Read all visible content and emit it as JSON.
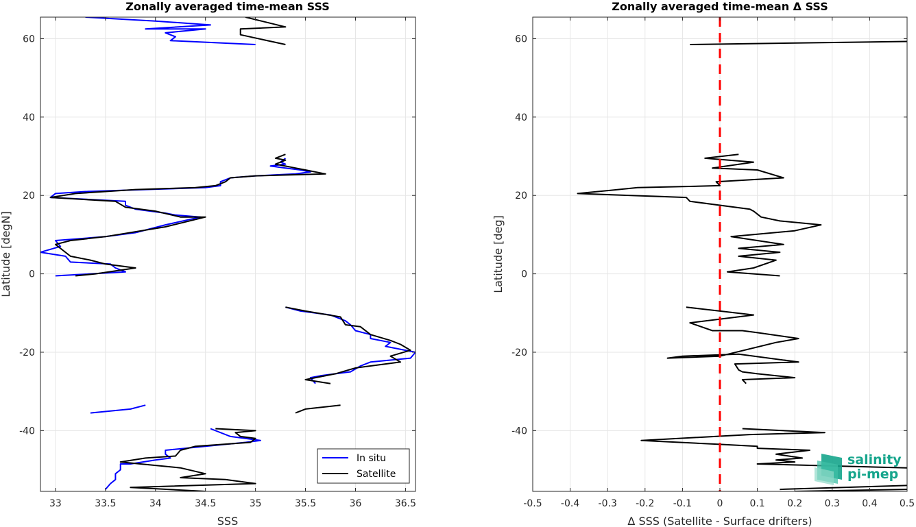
{
  "chart_data": [
    {
      "type": "line",
      "title": "Zonally averaged time-mean SSS",
      "xlabel": "SSS",
      "ylabel": "Latitude [degN]",
      "xlim": [
        32.85,
        36.6
      ],
      "ylim": [
        -55.5,
        65.5
      ],
      "xticks": [
        33,
        33.5,
        34,
        34.5,
        35,
        35.5,
        36,
        36.5
      ],
      "xtick_labels": [
        "33",
        "33.5",
        "34",
        "34.5",
        "35",
        "35.5",
        "36",
        "36.5"
      ],
      "yticks": [
        -40,
        -20,
        0,
        20,
        40,
        60
      ],
      "ytick_labels": [
        "-40",
        "-20",
        "0",
        "20",
        "40",
        "60"
      ],
      "grid": true,
      "legend": {
        "placement": "bottom-right",
        "entries": [
          "In situ",
          "Satellite"
        ]
      },
      "series": [
        {
          "name": "In situ",
          "color": "#0000ff",
          "segments": [
            [
              [
                33.3,
                65.5
              ],
              [
                34.0,
                64.5
              ],
              [
                34.55,
                63.5
              ],
              [
                33.9,
                62.5
              ],
              [
                34.5,
                62.5
              ],
              [
                34.1,
                61.5
              ],
              [
                34.2,
                60.5
              ],
              [
                34.15,
                59.5
              ],
              [
                35.0,
                58.5
              ]
            ],
            [
              [
                35.3,
                29.5
              ],
              [
                35.25,
                28.5
              ],
              [
                35.3,
                28.0
              ],
              [
                35.15,
                27.5
              ],
              [
                35.3,
                27.0
              ],
              [
                35.45,
                26.5
              ],
              [
                35.55,
                26.0
              ],
              [
                35.4,
                25.5
              ],
              [
                35.0,
                25.0
              ],
              [
                34.75,
                24.5
              ],
              [
                34.65,
                23.5
              ],
              [
                34.65,
                22.5
              ],
              [
                34.5,
                22.0
              ],
              [
                33.3,
                21.0
              ],
              [
                33.0,
                20.5
              ],
              [
                32.95,
                19.5
              ],
              [
                33.7,
                18.5
              ],
              [
                33.7,
                17.5
              ],
              [
                33.8,
                16.5
              ],
              [
                34.1,
                15.5
              ],
              [
                34.2,
                15.0
              ],
              [
                34.45,
                14.5
              ],
              [
                34.1,
                12.5
              ],
              [
                33.8,
                10.5
              ],
              [
                33.5,
                9.5
              ],
              [
                33.0,
                8.5
              ],
              [
                33.05,
                7.0
              ],
              [
                32.85,
                5.5
              ],
              [
                33.1,
                4.5
              ],
              [
                33.15,
                3.0
              ],
              [
                33.55,
                2.5
              ],
              [
                33.6,
                1.5
              ],
              [
                33.7,
                0.5
              ],
              [
                33.0,
                -0.5
              ]
            ],
            [
              [
                35.3,
                -8.5
              ],
              [
                35.45,
                -9.5
              ],
              [
                35.75,
                -10.5
              ],
              [
                35.9,
                -12.0
              ],
              [
                35.95,
                -13.0
              ],
              [
                36.0,
                -14.5
              ],
              [
                36.15,
                -15.5
              ],
              [
                36.15,
                -16.5
              ],
              [
                36.35,
                -17.5
              ],
              [
                36.3,
                -18.5
              ],
              [
                36.6,
                -20.0
              ],
              [
                36.55,
                -21.5
              ],
              [
                36.15,
                -22.5
              ],
              [
                36.05,
                -23.5
              ],
              [
                35.95,
                -25.0
              ],
              [
                35.8,
                -25.5
              ],
              [
                35.65,
                -26.0
              ],
              [
                35.55,
                -26.5
              ],
              [
                35.6,
                -28.0
              ]
            ],
            [
              [
                33.9,
                -33.5
              ],
              [
                33.75,
                -34.5
              ],
              [
                33.35,
                -35.5
              ]
            ],
            [
              [
                34.55,
                -39.5
              ],
              [
                34.75,
                -41.5
              ],
              [
                34.9,
                -42.0
              ],
              [
                35.05,
                -42.5
              ],
              [
                34.9,
                -43.0
              ],
              [
                34.5,
                -44.0
              ],
              [
                34.1,
                -45.0
              ],
              [
                34.1,
                -46.0
              ],
              [
                34.15,
                -47.0
              ],
              [
                34.0,
                -47.5
              ],
              [
                33.75,
                -48.5
              ],
              [
                33.65,
                -48.5
              ],
              [
                33.65,
                -50.0
              ],
              [
                33.6,
                -51.0
              ],
              [
                33.6,
                -52.5
              ],
              [
                33.55,
                -53.5
              ],
              [
                33.5,
                -55.0
              ]
            ]
          ]
        },
        {
          "name": "Satellite",
          "color": "#000000",
          "segments": [
            [
              [
                34.9,
                65.5
              ],
              [
                35.3,
                63.0
              ],
              [
                34.85,
                62.5
              ],
              [
                34.85,
                61.0
              ],
              [
                35.3,
                58.5
              ]
            ],
            [
              [
                35.3,
                30.5
              ],
              [
                35.2,
                29.5
              ],
              [
                35.3,
                29.0
              ],
              [
                35.2,
                28.0
              ],
              [
                35.4,
                27.0
              ],
              [
                35.5,
                26.5
              ],
              [
                35.7,
                25.5
              ],
              [
                35.0,
                25.0
              ],
              [
                34.75,
                24.5
              ],
              [
                34.7,
                23.5
              ],
              [
                34.6,
                22.5
              ],
              [
                34.4,
                22.0
              ],
              [
                33.8,
                21.5
              ],
              [
                33.2,
                20.5
              ],
              [
                32.95,
                19.5
              ],
              [
                33.6,
                18.5
              ],
              [
                33.7,
                17.0
              ],
              [
                34.0,
                16.0
              ],
              [
                34.25,
                14.5
              ],
              [
                34.5,
                14.5
              ],
              [
                34.1,
                12.0
              ],
              [
                33.5,
                9.5
              ],
              [
                33.15,
                8.5
              ],
              [
                33.0,
                7.5
              ],
              [
                33.15,
                4.5
              ],
              [
                33.35,
                3.5
              ],
              [
                33.5,
                2.5
              ],
              [
                33.8,
                1.5
              ],
              [
                33.4,
                0.0
              ],
              [
                33.2,
                -0.5
              ]
            ],
            [
              [
                35.3,
                -8.5
              ],
              [
                35.5,
                -9.5
              ],
              [
                35.85,
                -11.0
              ],
              [
                35.9,
                -13.0
              ],
              [
                36.05,
                -13.5
              ],
              [
                36.15,
                -15.5
              ],
              [
                36.35,
                -17.0
              ],
              [
                36.45,
                -18.0
              ],
              [
                36.55,
                -19.5
              ],
              [
                36.35,
                -21.0
              ],
              [
                36.45,
                -22.5
              ],
              [
                36.0,
                -24.0
              ],
              [
                35.8,
                -25.5
              ],
              [
                35.5,
                -27.0
              ],
              [
                35.75,
                -28.0
              ]
            ],
            [
              [
                35.85,
                -33.5
              ],
              [
                35.5,
                -34.5
              ],
              [
                35.4,
                -35.5
              ]
            ],
            [
              [
                34.6,
                -39.5
              ],
              [
                35.0,
                -40.0
              ],
              [
                34.8,
                -40.5
              ],
              [
                34.85,
                -41.5
              ],
              [
                35.0,
                -42.0
              ],
              [
                34.95,
                -43.0
              ],
              [
                34.4,
                -44.0
              ],
              [
                34.25,
                -45.0
              ],
              [
                34.2,
                -46.5
              ],
              [
                33.9,
                -47.0
              ],
              [
                33.65,
                -48.0
              ],
              [
                33.85,
                -48.5
              ],
              [
                34.25,
                -49.5
              ],
              [
                34.5,
                -51.0
              ],
              [
                34.25,
                -52.0
              ],
              [
                34.7,
                -52.5
              ],
              [
                35.0,
                -53.5
              ],
              [
                33.75,
                -54.5
              ],
              [
                34.5,
                -55.5
              ]
            ]
          ]
        }
      ]
    },
    {
      "type": "line",
      "title": "Zonally averaged time-mean Δ SSS",
      "xlabel": "Δ SSS (Satellite - Surface drifters)",
      "ylabel": "Latitude [deg]",
      "xlim": [
        -0.5,
        0.5
      ],
      "ylim": [
        -55.5,
        65.5
      ],
      "xticks": [
        -0.5,
        -0.4,
        -0.3,
        -0.2,
        -0.1,
        0,
        0.1,
        0.2,
        0.3,
        0.4,
        0.5
      ],
      "xtick_labels": [
        "-0.5",
        "-0.4",
        "-0.3",
        "-0.2",
        "-0.1",
        "0",
        "0.1",
        "0.2",
        "0.3",
        "0.4",
        "0.5"
      ],
      "yticks": [
        -40,
        -20,
        0,
        20,
        40,
        60
      ],
      "ytick_labels": [
        "-40",
        "-20",
        "0",
        "20",
        "40",
        "60"
      ],
      "grid": true,
      "reference_line": {
        "x": 0,
        "color": "#ff0000",
        "style": "dashed"
      },
      "series": [
        {
          "color": "#000000",
          "segments": [
            [
              [
                -0.08,
                58.5
              ],
              [
                0.5,
                59.3
              ]
            ],
            [
              [
                0.05,
                30.5
              ],
              [
                -0.04,
                29.5
              ],
              [
                0.09,
                28.5
              ],
              [
                -0.02,
                27.0
              ],
              [
                0.1,
                26.5
              ],
              [
                0.17,
                24.5
              ],
              [
                -0.01,
                23.5
              ],
              [
                0.0,
                22.5
              ],
              [
                -0.22,
                22.0
              ],
              [
                -0.38,
                20.5
              ],
              [
                -0.09,
                19.5
              ],
              [
                -0.08,
                18.5
              ],
              [
                0.08,
                16.5
              ],
              [
                0.09,
                16.0
              ],
              [
                0.11,
                14.5
              ],
              [
                0.16,
                13.5
              ],
              [
                0.27,
                12.5
              ],
              [
                0.2,
                11.0
              ],
              [
                0.03,
                9.5
              ],
              [
                0.17,
                7.5
              ],
              [
                0.05,
                6.5
              ],
              [
                0.16,
                5.5
              ],
              [
                0.05,
                4.5
              ],
              [
                0.15,
                3.5
              ],
              [
                0.09,
                1.5
              ],
              [
                0.02,
                0.5
              ],
              [
                0.16,
                -0.5
              ]
            ],
            [
              [
                -0.09,
                -8.5
              ],
              [
                0.0,
                -9.5
              ],
              [
                0.09,
                -10.5
              ],
              [
                -0.08,
                -12.5
              ],
              [
                -0.02,
                -14.5
              ],
              [
                0.06,
                -14.5
              ],
              [
                0.1,
                -15.0
              ],
              [
                0.21,
                -16.5
              ],
              [
                0.15,
                -17.5
              ],
              [
                0.0,
                -21.0
              ],
              [
                -0.14,
                -21.5
              ],
              [
                -0.1,
                -21.0
              ],
              [
                0.05,
                -20.5
              ],
              [
                0.21,
                -22.5
              ],
              [
                0.04,
                -23.0
              ],
              [
                0.05,
                -24.5
              ],
              [
                0.06,
                -25.0
              ],
              [
                0.1,
                -25.5
              ],
              [
                0.2,
                -26.5
              ],
              [
                0.06,
                -27.0
              ],
              [
                0.07,
                -28.0
              ]
            ],
            [
              [
                0.06,
                -39.5
              ],
              [
                0.28,
                -40.5
              ],
              [
                0.08,
                -41.0
              ],
              [
                -0.21,
                -42.5
              ],
              [
                0.0,
                -43.5
              ],
              [
                0.1,
                -44.0
              ],
              [
                0.1,
                -44.5
              ],
              [
                0.24,
                -45.0
              ],
              [
                0.15,
                -46.0
              ],
              [
                0.22,
                -47.0
              ],
              [
                0.15,
                -47.5
              ],
              [
                0.2,
                -48.0
              ],
              [
                0.1,
                -48.5
              ],
              [
                0.5,
                -49.5
              ]
            ],
            [
              [
                0.16,
                -55.0
              ],
              [
                0.5,
                -54.0
              ]
            ],
            [
              [
                0.2,
                -55.5
              ],
              [
                0.5,
                -55.0
              ]
            ]
          ]
        }
      ]
    }
  ],
  "logo": {
    "line1": "salinity",
    "line2": "pi-mep"
  }
}
